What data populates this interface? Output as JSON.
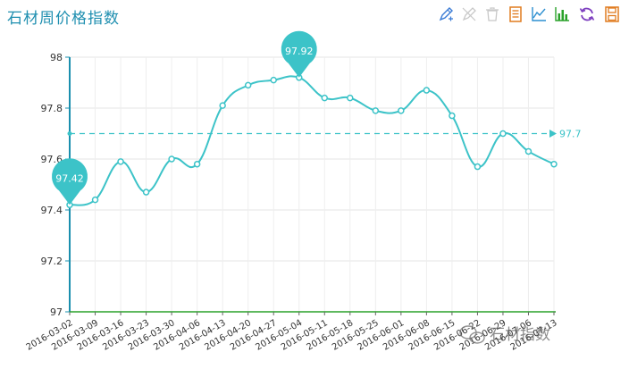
{
  "header": {
    "title": "石材周价格指数"
  },
  "toolbox": {
    "icons": [
      "mark-icon",
      "mark-undo-icon",
      "mark-clear-icon",
      "data-view-icon",
      "line-chart-icon",
      "bar-chart-icon",
      "restore-icon",
      "save-image-icon"
    ]
  },
  "watermark": {
    "text": "石材指数"
  },
  "colors": {
    "series": "#3cc3c8",
    "axis": "#1a8fae",
    "title": "#1f8fb0",
    "x_axis": "#2aa22a"
  },
  "chart_data": {
    "type": "line",
    "title": "石材周价格指数",
    "xlabel": "",
    "ylabel": "",
    "ylim": [
      97,
      98
    ],
    "yticks": [
      "97",
      "97.2",
      "97.4",
      "97.6",
      "97.8",
      "98"
    ],
    "categories": [
      "2016-03-02",
      "2016-03-09",
      "2016-03-16",
      "2016-03-23",
      "2016-03-30",
      "2016-04-06",
      "2016-04-13",
      "2016-04-20",
      "2016-04-27",
      "2016-05-04",
      "2016-05-11",
      "2016-05-18",
      "2016-05-25",
      "2016-06-01",
      "2016-06-08",
      "2016-06-15",
      "2016-06-22",
      "2016-06-29",
      "2016-07-06",
      "2016-07-13"
    ],
    "series": [
      {
        "values": [
          97.42,
          97.44,
          97.59,
          97.47,
          97.6,
          97.58,
          97.81,
          97.89,
          97.91,
          97.92,
          97.84,
          97.84,
          97.79,
          97.79,
          97.87,
          97.77,
          97.57,
          97.7,
          97.63,
          97.58
        ]
      }
    ],
    "mark_points": [
      {
        "type": "max",
        "label": "97.92",
        "index": 9,
        "value": 97.92
      },
      {
        "type": "min",
        "label": "97.42",
        "index": 0,
        "value": 97.42
      }
    ],
    "mark_line": {
      "type": "average",
      "value": 97.7,
      "label": "97.7"
    },
    "grid": true
  }
}
